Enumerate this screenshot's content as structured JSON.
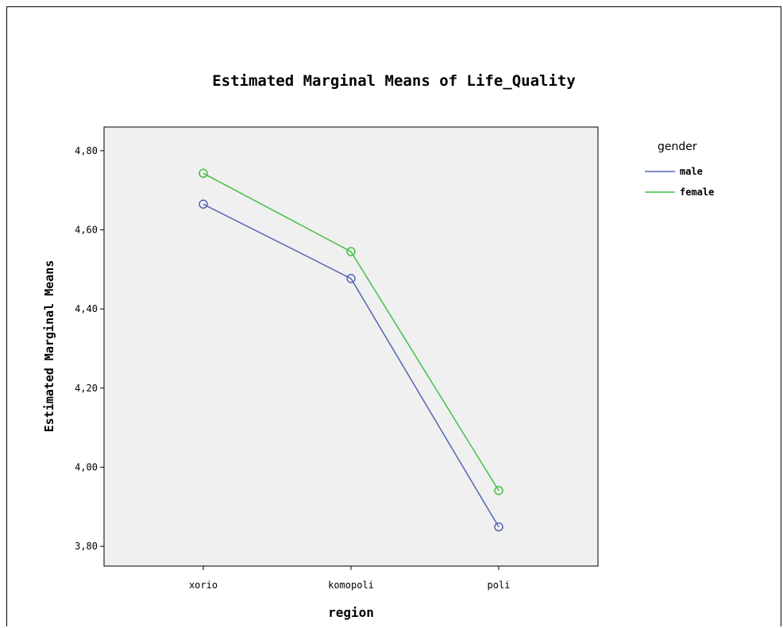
{
  "chart_data": {
    "type": "line",
    "title": "Estimated Marginal Means of Life_Quality",
    "xlabel": "region",
    "ylabel": "Estimated Marginal Means",
    "categories": [
      "xorio",
      "komopoli",
      "poli"
    ],
    "ylim": [
      3.75,
      4.86
    ],
    "yticks": [
      3.8,
      4.0,
      4.2,
      4.4,
      4.6,
      4.8
    ],
    "ytick_labels": [
      "3,80",
      "4,00",
      "4,20",
      "4,40",
      "4,60",
      "4,80"
    ],
    "grid": false,
    "plot_background": "#f0f0f0",
    "legend": {
      "title": "gender",
      "placement": "right"
    },
    "series": [
      {
        "name": "male",
        "color": "#5565b5",
        "values": [
          4.665,
          4.477,
          3.849
        ]
      },
      {
        "name": "female",
        "color": "#44c044",
        "values": [
          4.743,
          4.545,
          3.941
        ]
      }
    ],
    "marker": "open-circle"
  }
}
